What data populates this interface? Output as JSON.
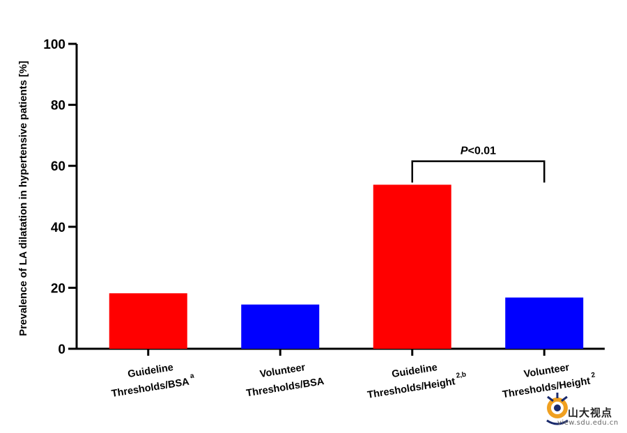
{
  "chart_data": {
    "type": "bar",
    "title": "",
    "xlabel": "",
    "ylabel": "Prevalence of LA dilatation in hypertensive patients [%]",
    "ylim": [
      0,
      100
    ],
    "yticks": [
      0,
      20,
      40,
      60,
      80,
      100
    ],
    "grid": false,
    "categories": [
      {
        "line1": "Guideline",
        "line2": "Thresholds/BSA",
        "sup": "a"
      },
      {
        "line1": "Volunteer",
        "line2": "Thresholds/BSA",
        "sup": ""
      },
      {
        "line1": "Guideline",
        "line2": "Thresholds/Height",
        "sup": "2,b"
      },
      {
        "line1": "Volunteer",
        "line2": "Thresholds/Height",
        "sup": "2"
      }
    ],
    "values": [
      18.2,
      14.5,
      53.8,
      16.8
    ],
    "colors": [
      "#ff0000",
      "#0000ff",
      "#ff0000",
      "#0000ff"
    ],
    "annotation": {
      "text": "P<0.01",
      "between": [
        2,
        3
      ]
    }
  },
  "watermark": {
    "text": "山大视点",
    "url": "view.sdu.edu.cn"
  }
}
